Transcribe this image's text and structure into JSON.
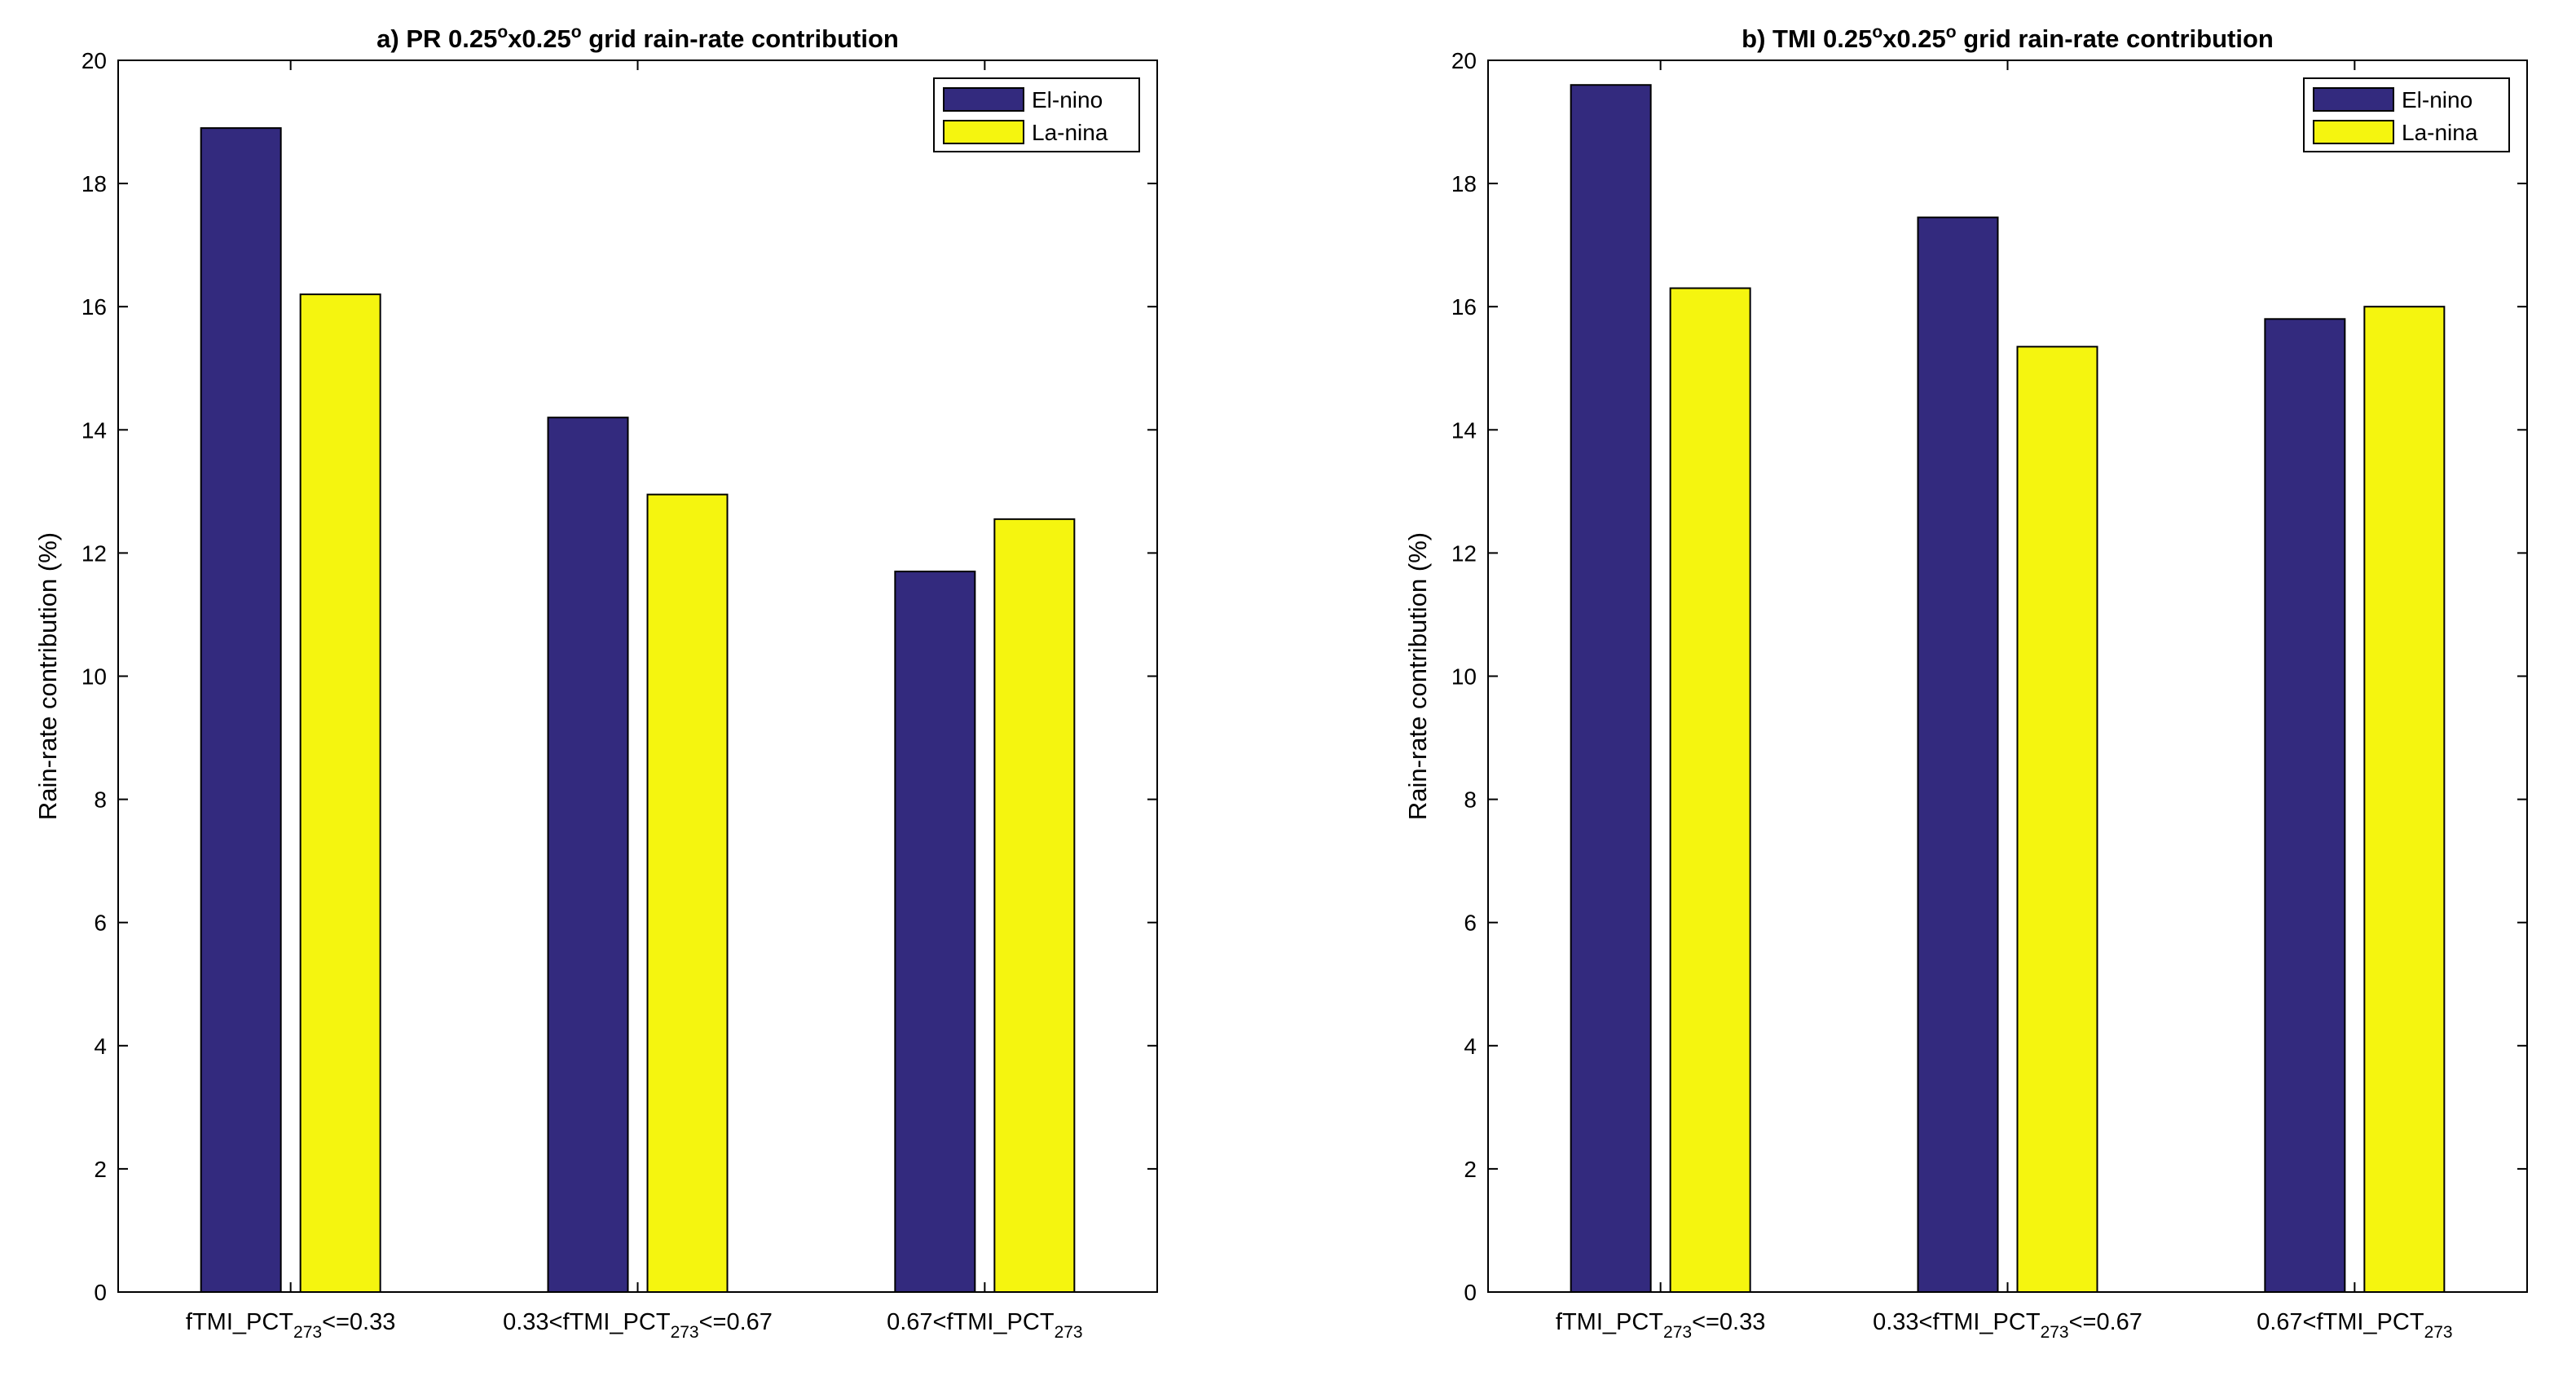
{
  "chart_data": [
    {
      "type": "bar",
      "title": "a) PR 0.25°x0.25° grid rain-rate contribution",
      "title_parts": {
        "prefix": "a) PR 0.25",
        "deg": "o",
        "mid": "x0.25",
        "deg2": "o",
        "suffix": " grid rain-rate contribution"
      },
      "xlabel": "",
      "ylabel": "Rain-rate contribution (%)",
      "ylim": [
        0,
        20
      ],
      "yticks": [
        "0",
        "2",
        "4",
        "6",
        "8",
        "10",
        "12",
        "14",
        "16",
        "18",
        "20"
      ],
      "categories": [
        {
          "pre": "fTMI_PCT",
          "sub": "273",
          "post": "<=0.33"
        },
        {
          "pre": "0.33<fTMI_PCT",
          "sub": "273",
          "post": "<=0.67"
        },
        {
          "pre": "0.67<fTMI_PCT",
          "sub": "273",
          "post": ""
        }
      ],
      "series": [
        {
          "name": "El-nino",
          "color": "#332a7e",
          "values": [
            18.9,
            14.2,
            11.7
          ]
        },
        {
          "name": "La-nina",
          "color": "#f5f50f",
          "values": [
            16.2,
            12.95,
            12.55
          ]
        }
      ],
      "legend_position": "top-right"
    },
    {
      "type": "bar",
      "title": "b) TMI 0.25°x0.25° grid rain-rate contribution",
      "title_parts": {
        "prefix": "b) TMI 0.25",
        "deg": "o",
        "mid": "x0.25",
        "deg2": "o",
        "suffix": " grid rain-rate contribution"
      },
      "xlabel": "",
      "ylabel": "Rain-rate contribution (%)",
      "ylim": [
        0,
        20
      ],
      "yticks": [
        "0",
        "2",
        "4",
        "6",
        "8",
        "10",
        "12",
        "14",
        "16",
        "18",
        "20"
      ],
      "categories": [
        {
          "pre": "fTMI_PCT",
          "sub": "273",
          "post": "<=0.33"
        },
        {
          "pre": "0.33<fTMI_PCT",
          "sub": "273",
          "post": "<=0.67"
        },
        {
          "pre": "0.67<fTMI_PCT",
          "sub": "273",
          "post": ""
        }
      ],
      "series": [
        {
          "name": "El-nino",
          "color": "#332a7e",
          "values": [
            19.6,
            17.45,
            15.8
          ]
        },
        {
          "name": "La-nina",
          "color": "#f5f50f",
          "values": [
            16.3,
            15.35,
            16.0
          ]
        }
      ],
      "legend_position": "top-right"
    }
  ]
}
